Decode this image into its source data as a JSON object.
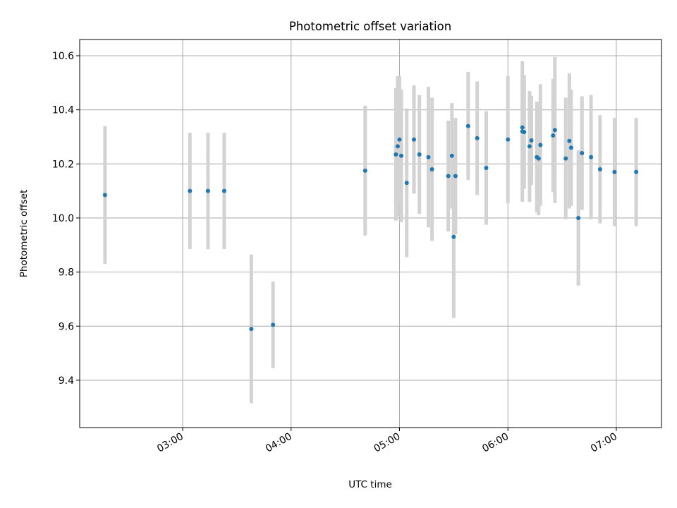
{
  "chart_data": {
    "type": "scatter",
    "title": "Photometric offset variation",
    "xlabel": "UTC time",
    "ylabel": "Photometric offset",
    "x_tick_labels": [
      "03:00",
      "04:00",
      "05:00",
      "06:00",
      "07:00"
    ],
    "x_ticks_minutes": [
      180,
      240,
      300,
      360,
      420
    ],
    "xlim_minutes": [
      123,
      445
    ],
    "ylim": [
      9.225,
      10.66
    ],
    "y_ticks": [
      9.4,
      9.6,
      9.8,
      10.0,
      10.2,
      10.4,
      10.6
    ],
    "grid": true,
    "colors": {
      "point": "#1f77b4",
      "errorbar": "#d3d3d3",
      "grid": "#b0b0b0"
    },
    "series": [
      {
        "x_minutes": [
          137,
          184,
          194,
          203,
          218,
          230,
          281,
          298,
          299,
          300,
          301,
          304,
          308,
          311,
          316,
          318,
          327,
          329,
          330,
          331,
          338,
          343,
          348,
          360,
          368,
          368,
          369,
          372,
          373,
          376,
          377,
          378,
          385,
          386,
          392,
          394,
          395,
          399,
          401,
          406,
          411,
          419,
          431
        ],
        "y": [
          10.085,
          10.1,
          10.1,
          10.1,
          9.59,
          9.605,
          10.175,
          10.235,
          10.265,
          10.29,
          10.23,
          10.13,
          10.29,
          10.235,
          10.225,
          10.18,
          10.155,
          10.23,
          9.93,
          10.155,
          10.34,
          10.295,
          10.185,
          10.29,
          10.32,
          10.335,
          10.318,
          10.265,
          10.287,
          10.225,
          10.22,
          10.27,
          10.305,
          10.325,
          10.22,
          10.285,
          10.26,
          10.0,
          10.24,
          10.225,
          10.18,
          10.17,
          10.17
        ],
        "y_err": [
          0.255,
          0.215,
          0.215,
          0.215,
          0.275,
          0.16,
          0.24,
          0.245,
          0.26,
          0.235,
          0.245,
          0.275,
          0.2,
          0.22,
          0.26,
          0.265,
          0.205,
          0.195,
          0.3,
          0.215,
          0.2,
          0.21,
          0.21,
          0.235,
          0.26,
          0.2,
          0.21,
          0.205,
          0.165,
          0.205,
          0.21,
          0.225,
          0.21,
          0.27,
          0.225,
          0.25,
          0.215,
          0.25,
          0.21,
          0.23,
          0.2,
          0.2,
          0.2
        ]
      }
    ]
  }
}
